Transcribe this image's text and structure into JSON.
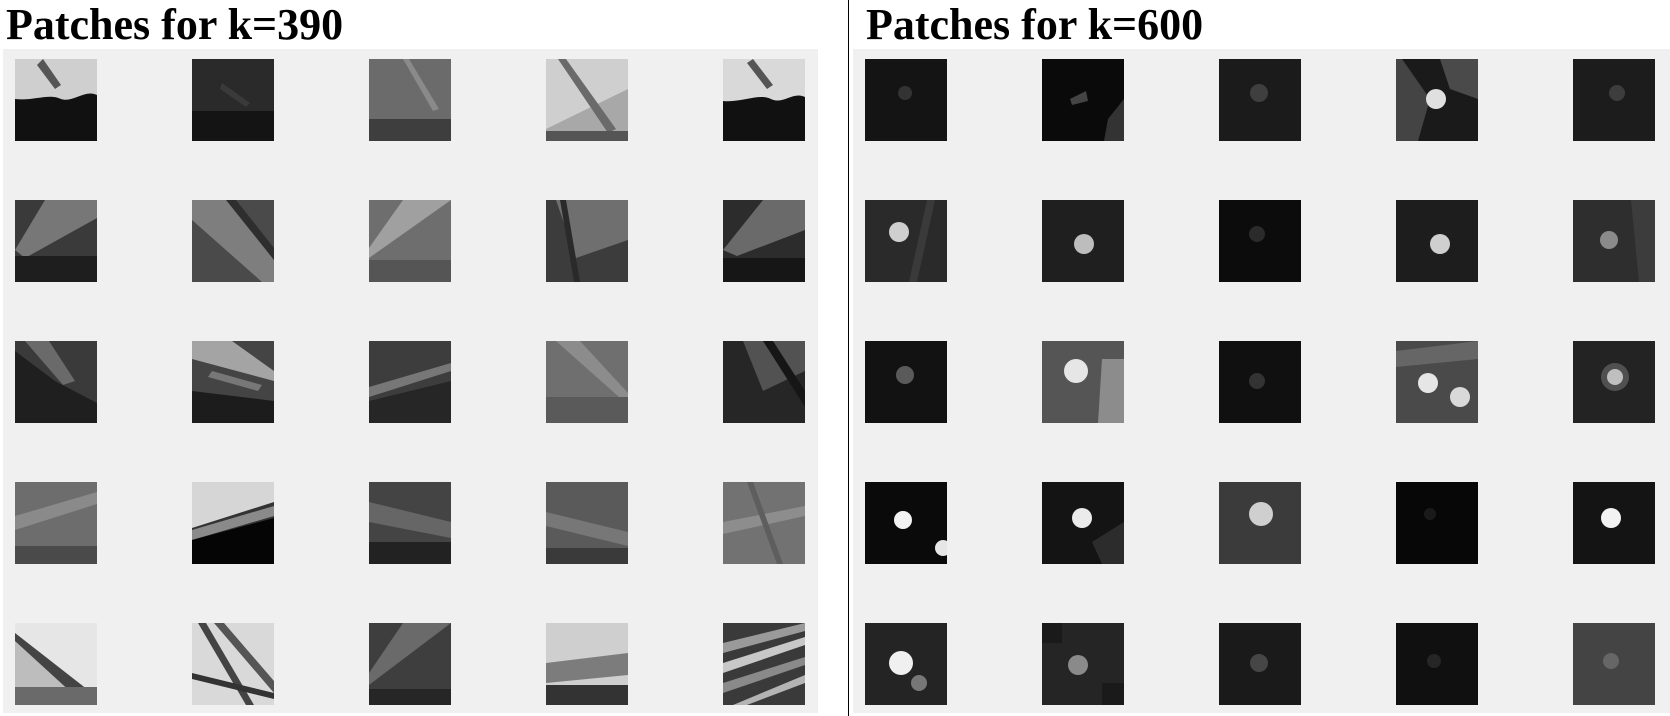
{
  "panels": [
    {
      "title": "Patches for k=390",
      "patch_grid": {
        "rows": 5,
        "cols": 5
      },
      "patches": [
        {
          "id": "edge-top-bright",
          "kind": "edge"
        },
        {
          "id": "edge-dark",
          "kind": "edge"
        },
        {
          "id": "edge-mid",
          "kind": "edge"
        },
        {
          "id": "edge-light-diag",
          "kind": "edge"
        },
        {
          "id": "edge-top-bright-2",
          "kind": "edge"
        },
        {
          "id": "wedge-1",
          "kind": "edge"
        },
        {
          "id": "wedge-2",
          "kind": "edge"
        },
        {
          "id": "wedge-3",
          "kind": "edge"
        },
        {
          "id": "wedge-4",
          "kind": "edge"
        },
        {
          "id": "wedge-5",
          "kind": "edge"
        },
        {
          "id": "diag-1",
          "kind": "edge"
        },
        {
          "id": "diag-2",
          "kind": "edge"
        },
        {
          "id": "diag-3",
          "kind": "edge"
        },
        {
          "id": "diag-4",
          "kind": "edge"
        },
        {
          "id": "diag-5",
          "kind": "edge"
        },
        {
          "id": "soft-1",
          "kind": "edge"
        },
        {
          "id": "contrast-1",
          "kind": "edge"
        },
        {
          "id": "soft-2",
          "kind": "edge"
        },
        {
          "id": "soft-3",
          "kind": "edge"
        },
        {
          "id": "soft-4",
          "kind": "edge"
        },
        {
          "id": "bright-edge",
          "kind": "edge"
        },
        {
          "id": "stripes",
          "kind": "edge"
        },
        {
          "id": "wedge-6",
          "kind": "edge"
        },
        {
          "id": "bright-blur",
          "kind": "edge"
        },
        {
          "id": "texture",
          "kind": "texture"
        }
      ]
    },
    {
      "title": "Patches for k=600",
      "patch_grid": {
        "rows": 5,
        "cols": 5
      },
      "patches": [
        {
          "id": "blob-faint",
          "kind": "blob"
        },
        {
          "id": "blob-dark-edge",
          "kind": "blob"
        },
        {
          "id": "blob-faint-2",
          "kind": "blob"
        },
        {
          "id": "blob-texture",
          "kind": "blob"
        },
        {
          "id": "blob-faint-3",
          "kind": "blob"
        },
        {
          "id": "blob-left",
          "kind": "blob"
        },
        {
          "id": "blob-center",
          "kind": "blob"
        },
        {
          "id": "blob-dim",
          "kind": "blob"
        },
        {
          "id": "blob-center-2",
          "kind": "blob"
        },
        {
          "id": "blob-right",
          "kind": "blob"
        },
        {
          "id": "blob-soft",
          "kind": "blob"
        },
        {
          "id": "blob-bright-grey",
          "kind": "blob"
        },
        {
          "id": "blob-dim-2",
          "kind": "blob"
        },
        {
          "id": "blob-double",
          "kind": "blob"
        },
        {
          "id": "blob-ring",
          "kind": "blob"
        },
        {
          "id": "blob-bright-left",
          "kind": "blob"
        },
        {
          "id": "blob-bright-center",
          "kind": "blob"
        },
        {
          "id": "blob-mid",
          "kind": "blob"
        },
        {
          "id": "blob-black",
          "kind": "blob"
        },
        {
          "id": "blob-bright-right",
          "kind": "blob"
        },
        {
          "id": "blob-bottom-left",
          "kind": "blob"
        },
        {
          "id": "blob-noisy",
          "kind": "blob"
        },
        {
          "id": "blob-dim-3",
          "kind": "blob"
        },
        {
          "id": "blob-dim-4",
          "kind": "blob"
        },
        {
          "id": "blob-grey-smooth",
          "kind": "blob"
        }
      ]
    }
  ]
}
